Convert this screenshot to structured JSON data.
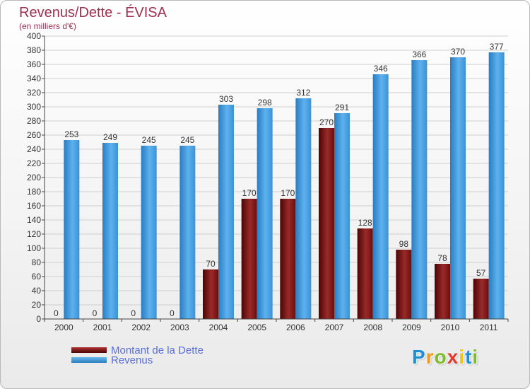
{
  "chart_data": {
    "type": "bar",
    "title": "Revenus/Dette - ÉVISA",
    "subtitle": "(en milliers d'€)",
    "categories": [
      "2000",
      "2001",
      "2002",
      "2003",
      "2004",
      "2005",
      "2006",
      "2007",
      "2008",
      "2009",
      "2010",
      "2011"
    ],
    "series": [
      {
        "name": "Montant de la Dette",
        "color": "#7a1212",
        "values": [
          0,
          0,
          0,
          0,
          70,
          170,
          170,
          270,
          128,
          98,
          78,
          57
        ]
      },
      {
        "name": "Revenus",
        "color": "#3d98de",
        "values": [
          253,
          249,
          245,
          245,
          303,
          298,
          312,
          291,
          346,
          366,
          370,
          377
        ]
      }
    ],
    "ylim": [
      0,
      400
    ],
    "ytick_step": 20,
    "grid": true,
    "legend_position": "bottom-left"
  },
  "logo": {
    "letters": [
      "P",
      "r",
      "o",
      "x",
      "i",
      "t",
      "i"
    ],
    "colors": [
      "#1e8fd6",
      "#f29a1a",
      "#7dbd2a",
      "#e23b2e",
      "#f2c413",
      "#1e8fd6",
      "#7dbd2a"
    ]
  }
}
